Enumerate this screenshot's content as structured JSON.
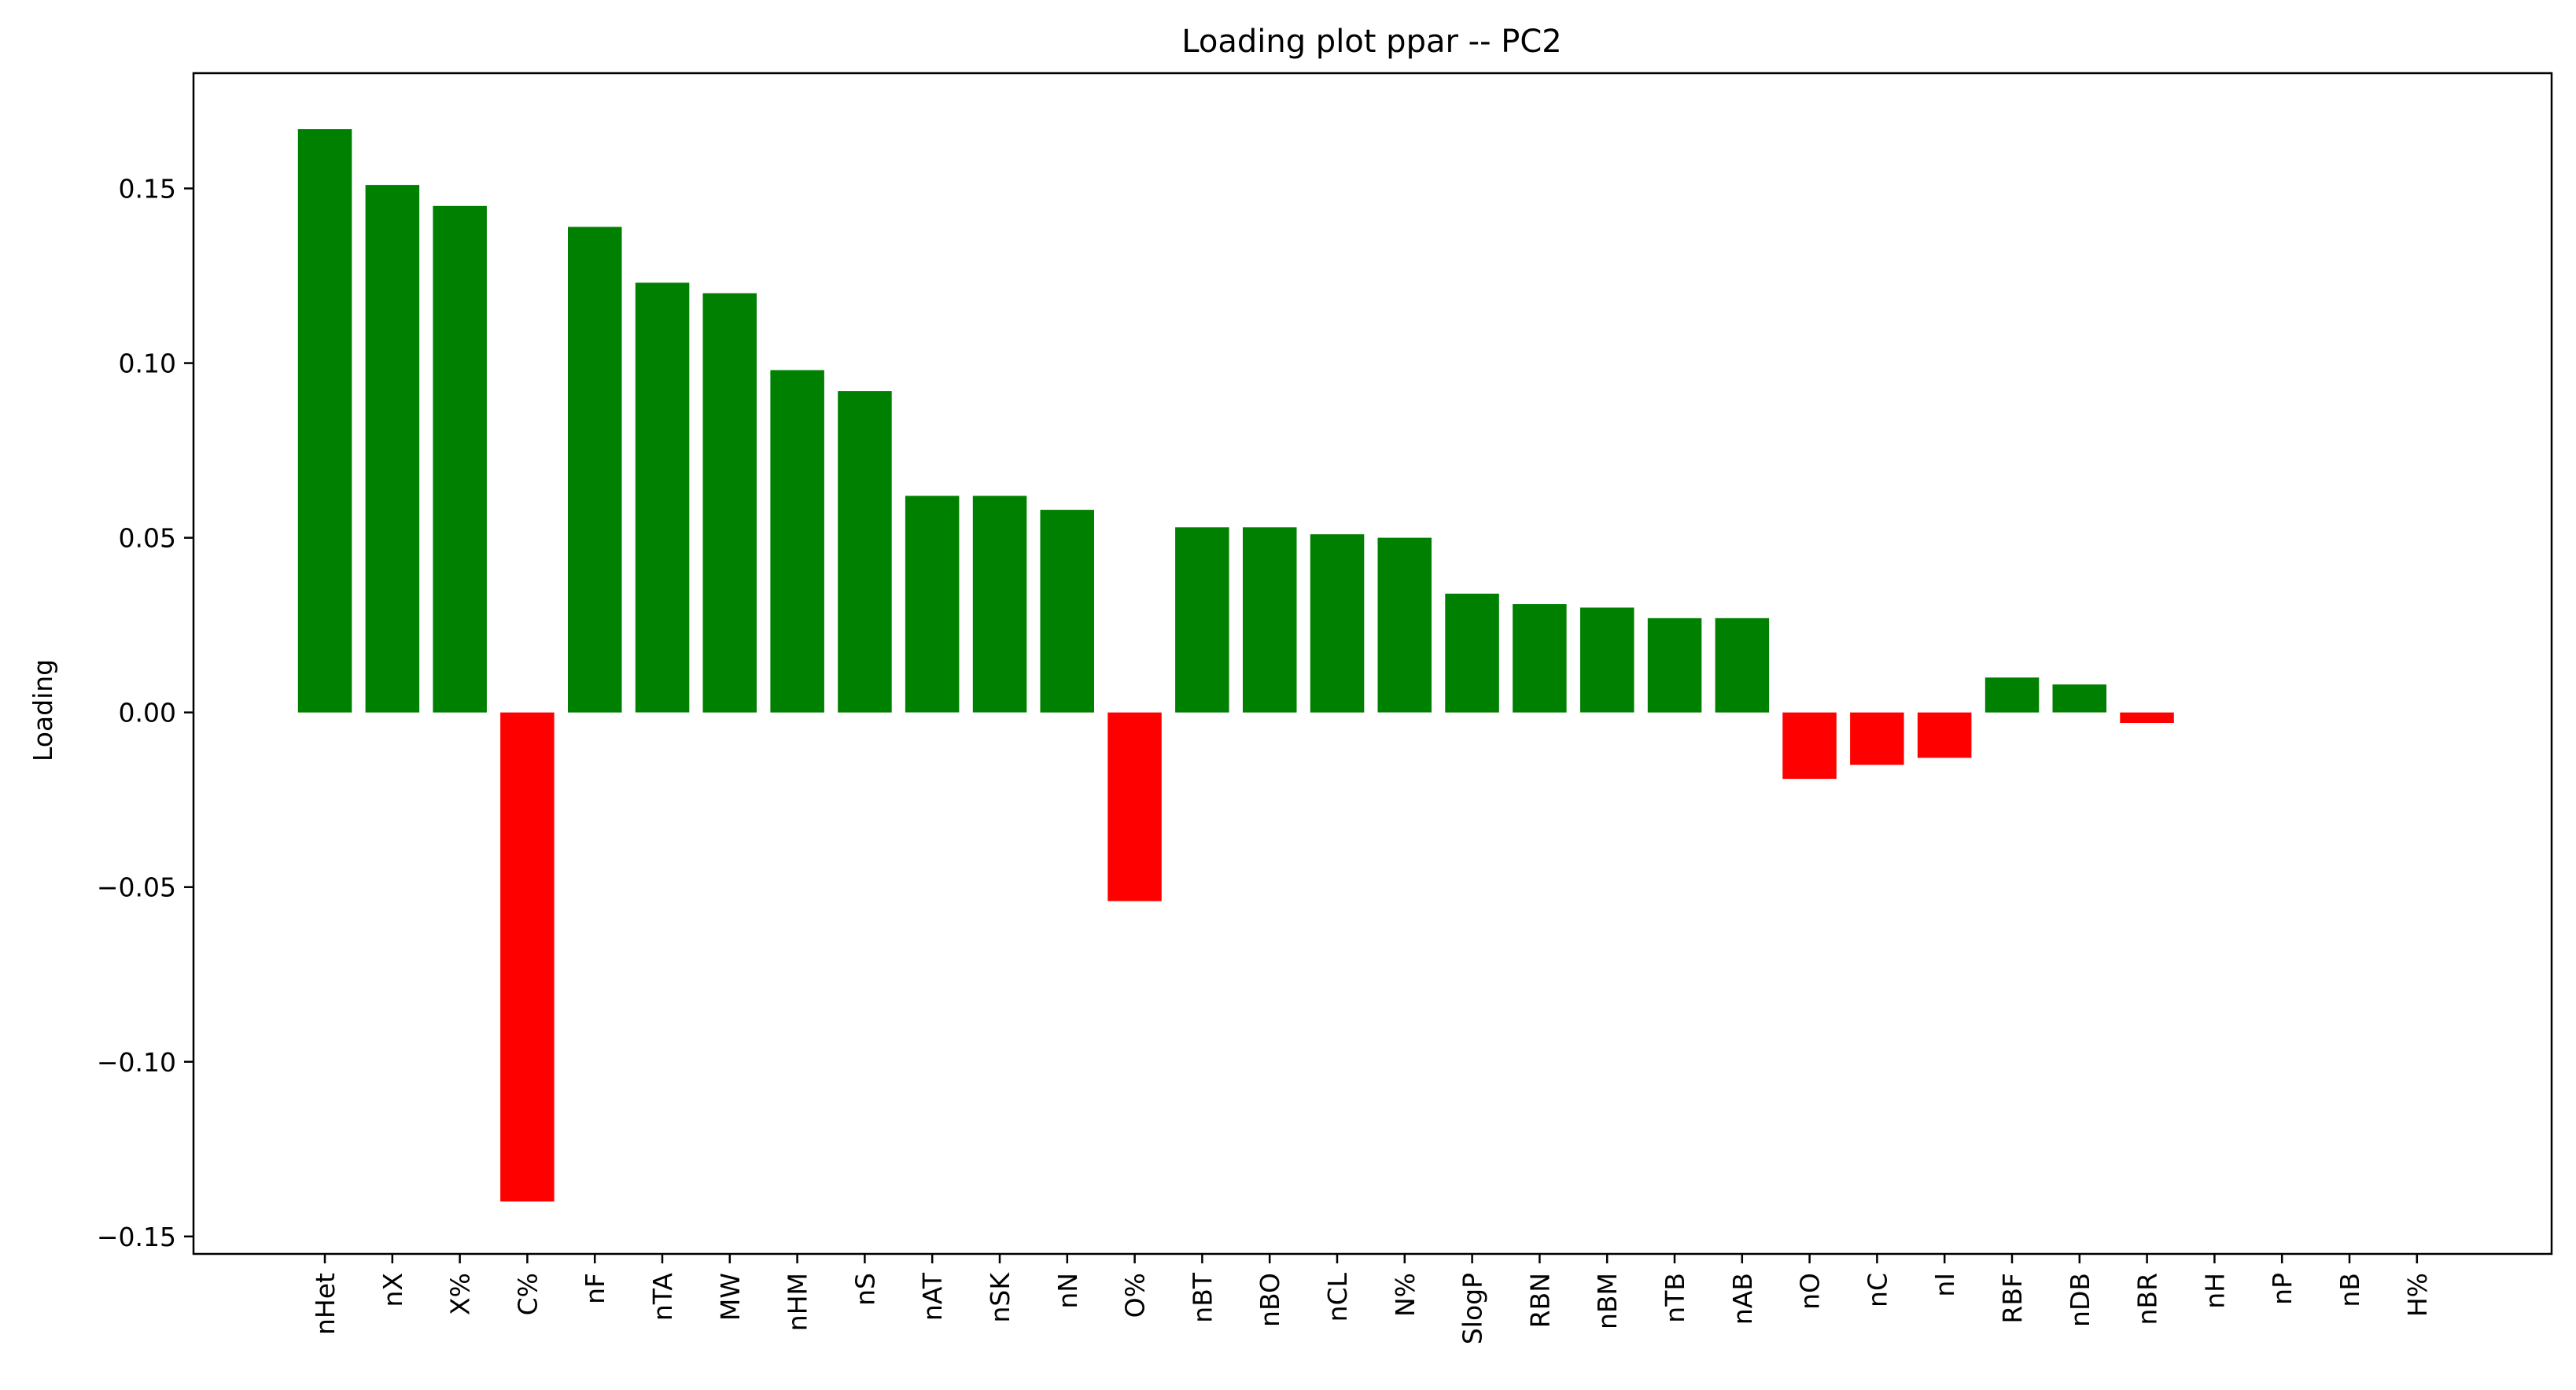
{
  "chart_data": {
    "type": "bar",
    "title": "Loading plot ppar -- PC2",
    "xlabel": "",
    "ylabel": "Loading",
    "categories": [
      "nHet",
      "nX",
      "X%",
      "C%",
      "nF",
      "nTA",
      "MW",
      "nHM",
      "nS",
      "nAT",
      "nSK",
      "nN",
      "O%",
      "nBT",
      "nBO",
      "nCL",
      "N%",
      "SlogP",
      "RBN",
      "nBM",
      "nTB",
      "nAB",
      "nO",
      "nC",
      "nI",
      "RBF",
      "nDB",
      "nBR",
      "nH",
      "nP",
      "nB",
      "H%"
    ],
    "values": [
      0.167,
      0.151,
      0.145,
      -0.14,
      0.139,
      0.123,
      0.12,
      0.098,
      0.092,
      0.062,
      0.062,
      0.058,
      -0.054,
      0.053,
      0.053,
      0.051,
      0.05,
      0.034,
      0.031,
      0.03,
      0.027,
      0.027,
      -0.019,
      -0.015,
      -0.013,
      0.01,
      0.008,
      -0.003,
      0.0,
      0.0,
      0.0,
      0.0
    ],
    "ylim": [
      -0.155,
      0.183
    ],
    "yticks": [
      -0.15,
      -0.1,
      -0.05,
      0.0,
      0.05,
      0.1,
      0.15
    ],
    "ytick_labels": [
      "−0.15",
      "−0.10",
      "−0.05",
      "0.00",
      "0.05",
      "0.10",
      "0.15"
    ],
    "colors": {
      "positive": "#008000",
      "negative": "#ff0000"
    },
    "grid": false,
    "legend": "none"
  }
}
